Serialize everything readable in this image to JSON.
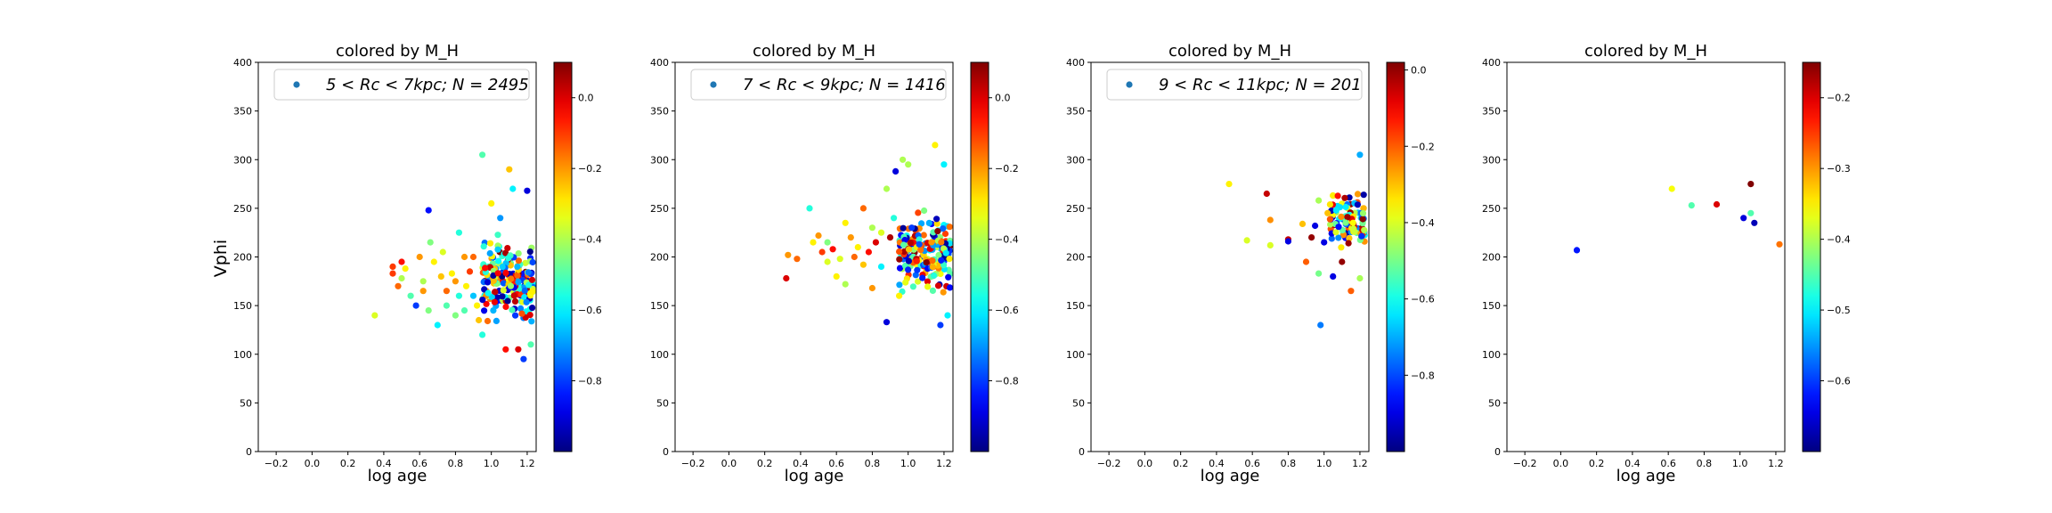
{
  "figure": {
    "ylabel": "Vphi"
  },
  "chart_data": [
    {
      "type": "scatter",
      "title": "colored by M_H",
      "xlabel": "log age",
      "ylabel": "Vphi",
      "xlim": [
        -0.3,
        1.25
      ],
      "ylim": [
        0,
        400
      ],
      "xticks": [
        "−0.2",
        "0.0",
        "0.2",
        "0.4",
        "0.6",
        "0.8",
        "1.0",
        "1.2"
      ],
      "yticks": [
        "0",
        "50",
        "100",
        "150",
        "200",
        "250",
        "300",
        "350",
        "400"
      ],
      "grid": false,
      "legend": {
        "location": "top-right",
        "label": "5 < Rc < 7kpc;  N = 2495",
        "marker_color": "#1f77b4"
      },
      "colorbar": {
        "label": "M_H",
        "colormap": "jet",
        "range": [
          -1.0,
          0.1
        ],
        "ticks": [
          0.0,
          -0.2,
          -0.4,
          -0.6,
          -0.8
        ],
        "tick_labels": [
          "0.0",
          "−0.2",
          "−0.4",
          "−0.6",
          "−0.8"
        ]
      },
      "cluster": {
        "x_range": [
          0.95,
          1.25
        ],
        "y_center": 175,
        "y_spread": 42,
        "count": 230
      },
      "points": [
        [
          0.35,
          140,
          -0.35
        ],
        [
          0.45,
          190,
          -0.1
        ],
        [
          0.45,
          183,
          -0.1
        ],
        [
          0.48,
          170,
          -0.15
        ],
        [
          0.5,
          195,
          -0.05
        ],
        [
          0.52,
          188,
          -0.3
        ],
        [
          0.5,
          178,
          -0.4
        ],
        [
          0.55,
          160,
          -0.5
        ],
        [
          0.58,
          150,
          -0.8
        ],
        [
          0.6,
          200,
          -0.2
        ],
        [
          0.62,
          175,
          -0.4
        ],
        [
          0.62,
          165,
          -0.2
        ],
        [
          0.65,
          248,
          -0.85
        ],
        [
          0.65,
          145,
          -0.45
        ],
        [
          0.66,
          215,
          -0.45
        ],
        [
          0.68,
          195,
          -0.3
        ],
        [
          0.7,
          130,
          -0.6
        ],
        [
          0.72,
          180,
          -0.25
        ],
        [
          0.73,
          205,
          -0.35
        ],
        [
          0.75,
          165,
          -0.15
        ],
        [
          0.75,
          150,
          -0.5
        ],
        [
          0.78,
          183,
          -0.3
        ],
        [
          0.8,
          140,
          -0.45
        ],
        [
          0.8,
          175,
          -0.2
        ],
        [
          0.82,
          160,
          -0.55
        ],
        [
          0.82,
          225,
          -0.55
        ],
        [
          0.85,
          200,
          -0.2
        ],
        [
          0.85,
          145,
          -0.5
        ],
        [
          0.86,
          170,
          -0.3
        ],
        [
          0.88,
          185,
          -0.1
        ],
        [
          0.9,
          160,
          -0.65
        ],
        [
          0.9,
          200,
          -0.15
        ],
        [
          0.92,
          150,
          -0.3
        ],
        [
          0.93,
          135,
          -0.25
        ],
        [
          0.95,
          305,
          -0.5
        ],
        [
          0.95,
          120,
          -0.55
        ],
        [
          1.0,
          255,
          -0.3
        ],
        [
          1.05,
          240,
          -0.7
        ],
        [
          1.1,
          290,
          -0.25
        ],
        [
          1.12,
          270,
          -0.6
        ],
        [
          1.15,
          105,
          0.0
        ],
        [
          1.18,
          95,
          -0.8
        ],
        [
          1.2,
          268,
          -0.9
        ],
        [
          1.08,
          105,
          -0.05
        ],
        [
          1.22,
          110,
          -0.5
        ]
      ]
    },
    {
      "type": "scatter",
      "title": "colored by M_H",
      "xlabel": "log age",
      "ylabel": "",
      "xlim": [
        -0.3,
        1.25
      ],
      "ylim": [
        0,
        400
      ],
      "xticks": [
        "−0.2",
        "0.0",
        "0.2",
        "0.4",
        "0.6",
        "0.8",
        "1.0",
        "1.2"
      ],
      "yticks": [
        "0",
        "50",
        "100",
        "150",
        "200",
        "250",
        "300",
        "350",
        "400"
      ],
      "grid": false,
      "legend": {
        "location": "top-right",
        "label": "7 < Rc < 9kpc;  N = 1416",
        "marker_color": "#1f77b4"
      },
      "colorbar": {
        "label": "M_H",
        "colormap": "jet",
        "range": [
          -1.0,
          0.1
        ],
        "ticks": [
          0.0,
          -0.2,
          -0.4,
          -0.6,
          -0.8
        ],
        "tick_labels": [
          "0.0",
          "−0.2",
          "−0.4",
          "−0.6",
          "−0.8"
        ]
      },
      "cluster": {
        "x_range": [
          0.95,
          1.25
        ],
        "y_center": 205,
        "y_spread": 38,
        "count": 210
      },
      "points": [
        [
          0.32,
          178,
          0.0
        ],
        [
          0.33,
          202,
          -0.2
        ],
        [
          0.38,
          198,
          -0.15
        ],
        [
          0.45,
          250,
          -0.55
        ],
        [
          0.47,
          215,
          -0.3
        ],
        [
          0.5,
          222,
          -0.2
        ],
        [
          0.52,
          205,
          -0.1
        ],
        [
          0.55,
          195,
          -0.35
        ],
        [
          0.55,
          215,
          -0.45
        ],
        [
          0.58,
          208,
          -0.05
        ],
        [
          0.6,
          180,
          -0.3
        ],
        [
          0.62,
          198,
          -0.35
        ],
        [
          0.65,
          235,
          -0.3
        ],
        [
          0.65,
          172,
          -0.4
        ],
        [
          0.68,
          220,
          -0.2
        ],
        [
          0.7,
          200,
          -0.15
        ],
        [
          0.72,
          210,
          -0.3
        ],
        [
          0.75,
          250,
          -0.15
        ],
        [
          0.75,
          192,
          -0.25
        ],
        [
          0.78,
          205,
          -0.05
        ],
        [
          0.8,
          230,
          -0.4
        ],
        [
          0.8,
          168,
          -0.2
        ],
        [
          0.82,
          215,
          0.0
        ],
        [
          0.85,
          225,
          -0.35
        ],
        [
          0.85,
          190,
          -0.6
        ],
        [
          0.88,
          133,
          -0.9
        ],
        [
          0.88,
          270,
          -0.4
        ],
        [
          0.9,
          220,
          0.05
        ],
        [
          0.92,
          240,
          -0.55
        ],
        [
          0.93,
          288,
          -0.9
        ],
        [
          0.95,
          160,
          -0.3
        ],
        [
          0.97,
          300,
          -0.4
        ],
        [
          1.0,
          295,
          -0.4
        ],
        [
          1.02,
          230,
          -0.8
        ],
        [
          1.15,
          315,
          -0.3
        ],
        [
          1.18,
          130,
          -0.8
        ],
        [
          1.2,
          295,
          -0.6
        ],
        [
          1.22,
          140,
          -0.6
        ]
      ]
    },
    {
      "type": "scatter",
      "title": "colored by M_H",
      "xlabel": "log age",
      "ylabel": "",
      "xlim": [
        -0.3,
        1.25
      ],
      "ylim": [
        0,
        400
      ],
      "xticks": [
        "−0.2",
        "0.0",
        "0.2",
        "0.4",
        "0.6",
        "0.8",
        "1.0",
        "1.2"
      ],
      "yticks": [
        "0",
        "50",
        "100",
        "150",
        "200",
        "250",
        "300",
        "350",
        "400"
      ],
      "grid": false,
      "legend": {
        "location": "top-right",
        "label": "9 < Rc < 11kpc;  N = 201",
        "marker_color": "#1f77b4"
      },
      "colorbar": {
        "label": "M_H",
        "colormap": "jet",
        "range": [
          -1.0,
          0.02
        ],
        "ticks": [
          0.0,
          -0.2,
          -0.4,
          -0.6,
          -0.8
        ],
        "tick_labels": [
          "0.0",
          "−0.2",
          "−0.4",
          "−0.6",
          "−0.8"
        ]
      },
      "cluster": {
        "x_range": [
          1.03,
          1.23
        ],
        "y_center": 235,
        "y_spread": 30,
        "count": 110
      },
      "points": [
        [
          0.47,
          275,
          -0.35
        ],
        [
          0.57,
          217,
          -0.4
        ],
        [
          0.68,
          265,
          -0.05
        ],
        [
          0.7,
          238,
          -0.25
        ],
        [
          0.7,
          212,
          -0.4
        ],
        [
          0.8,
          218,
          -0.05
        ],
        [
          0.8,
          216,
          -0.9
        ],
        [
          0.88,
          234,
          -0.3
        ],
        [
          0.9,
          195,
          -0.2
        ],
        [
          0.93,
          220,
          0.0
        ],
        [
          0.95,
          232,
          -0.9
        ],
        [
          0.97,
          183,
          -0.5
        ],
        [
          0.97,
          258,
          -0.45
        ],
        [
          0.98,
          130,
          -0.75
        ],
        [
          1.0,
          215,
          -0.9
        ],
        [
          1.02,
          245,
          -0.3
        ],
        [
          1.05,
          180,
          -0.9
        ],
        [
          1.1,
          195,
          0.0
        ],
        [
          1.15,
          165,
          -0.2
        ],
        [
          1.2,
          305,
          -0.7
        ],
        [
          1.2,
          178,
          -0.45
        ]
      ]
    },
    {
      "type": "scatter",
      "title": "colored by M_H",
      "xlabel": "log age",
      "ylabel": "",
      "xlim": [
        -0.3,
        1.25
      ],
      "ylim": [
        0,
        400
      ],
      "xticks": [
        "−0.2",
        "0.0",
        "0.2",
        "0.4",
        "0.6",
        "0.8",
        "1.0",
        "1.2"
      ],
      "yticks": [
        "0",
        "50",
        "100",
        "150",
        "200",
        "250",
        "300",
        "350",
        "400"
      ],
      "grid": false,
      "legend": null,
      "colorbar": {
        "label": "M_H",
        "colormap": "jet",
        "range": [
          -0.7,
          -0.15
        ],
        "ticks": [
          -0.2,
          -0.3,
          -0.4,
          -0.5,
          -0.6
        ],
        "tick_labels": [
          "−0.2",
          "−0.3",
          "−0.4",
          "−0.5",
          "−0.6"
        ]
      },
      "cluster": null,
      "points": [
        [
          0.09,
          207,
          -0.62
        ],
        [
          0.62,
          270,
          -0.36
        ],
        [
          0.73,
          253,
          -0.45
        ],
        [
          0.87,
          254,
          -0.2
        ],
        [
          1.02,
          240,
          -0.65
        ],
        [
          1.06,
          275,
          -0.15
        ],
        [
          1.06,
          245,
          -0.45
        ],
        [
          1.08,
          235,
          -0.67
        ],
        [
          1.22,
          213,
          -0.28
        ]
      ]
    }
  ]
}
